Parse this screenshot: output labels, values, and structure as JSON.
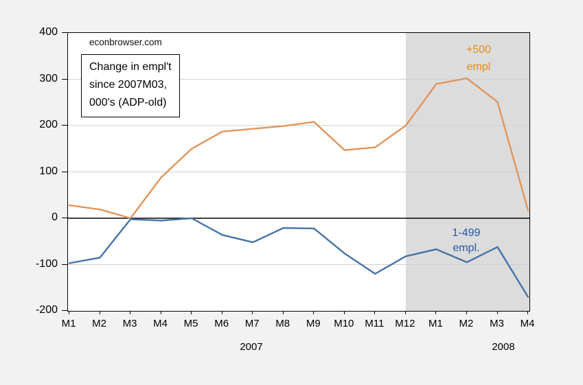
{
  "watermark": "econbrowser.com",
  "annotation": {
    "lines": [
      "Change in empl't",
      "since 2007M03,",
      "000's (ADP-old)"
    ]
  },
  "colors": {
    "background": "#f2f2f2",
    "plot_background": "#ffffff",
    "shade": "#dcdcdc",
    "grid": "#cfcfcf",
    "zero_line": "#000000",
    "frame": "#000000"
  },
  "chart_data": {
    "type": "line",
    "title": "Change in empl't since 2007M03, 000's (ADP-old)",
    "xlabel": "",
    "ylabel": "",
    "categories": [
      "M1",
      "M2",
      "M3",
      "M4",
      "M5",
      "M6",
      "M7",
      "M8",
      "M9",
      "M10",
      "M11",
      "M12",
      "M1",
      "M2",
      "M3",
      "M4"
    ],
    "x_groups": [
      {
        "label": "2007",
        "months": 12
      },
      {
        "label": "2008",
        "months": 4
      }
    ],
    "series": [
      {
        "name": "+500 empl",
        "label_lines": [
          "+500",
          "empl"
        ],
        "color": "#e2945b",
        "label_color": "#df8d15",
        "values": [
          28,
          19,
          0,
          88,
          150,
          187,
          193,
          199,
          208,
          147,
          153,
          200,
          290,
          302,
          251,
          17
        ]
      },
      {
        "name": "1-499 empl.",
        "label_lines": [
          "1-499",
          "empl."
        ],
        "color": "#4472a8",
        "label_color": "#2257a4",
        "values": [
          -97,
          -85,
          -2,
          -5,
          0,
          -36,
          -52,
          -21,
          -22,
          -76,
          -120,
          -82,
          -67,
          -95,
          -62,
          -170
        ]
      }
    ],
    "ylim": [
      -200,
      400
    ],
    "y_ticks": [
      400,
      300,
      200,
      100,
      0,
      -100,
      -200
    ],
    "grid": true,
    "legend_position": "inline-annotations",
    "shaded_region": {
      "start_category_index": 11,
      "start_label": "2007 M12",
      "end_label": "2008 M4"
    }
  }
}
